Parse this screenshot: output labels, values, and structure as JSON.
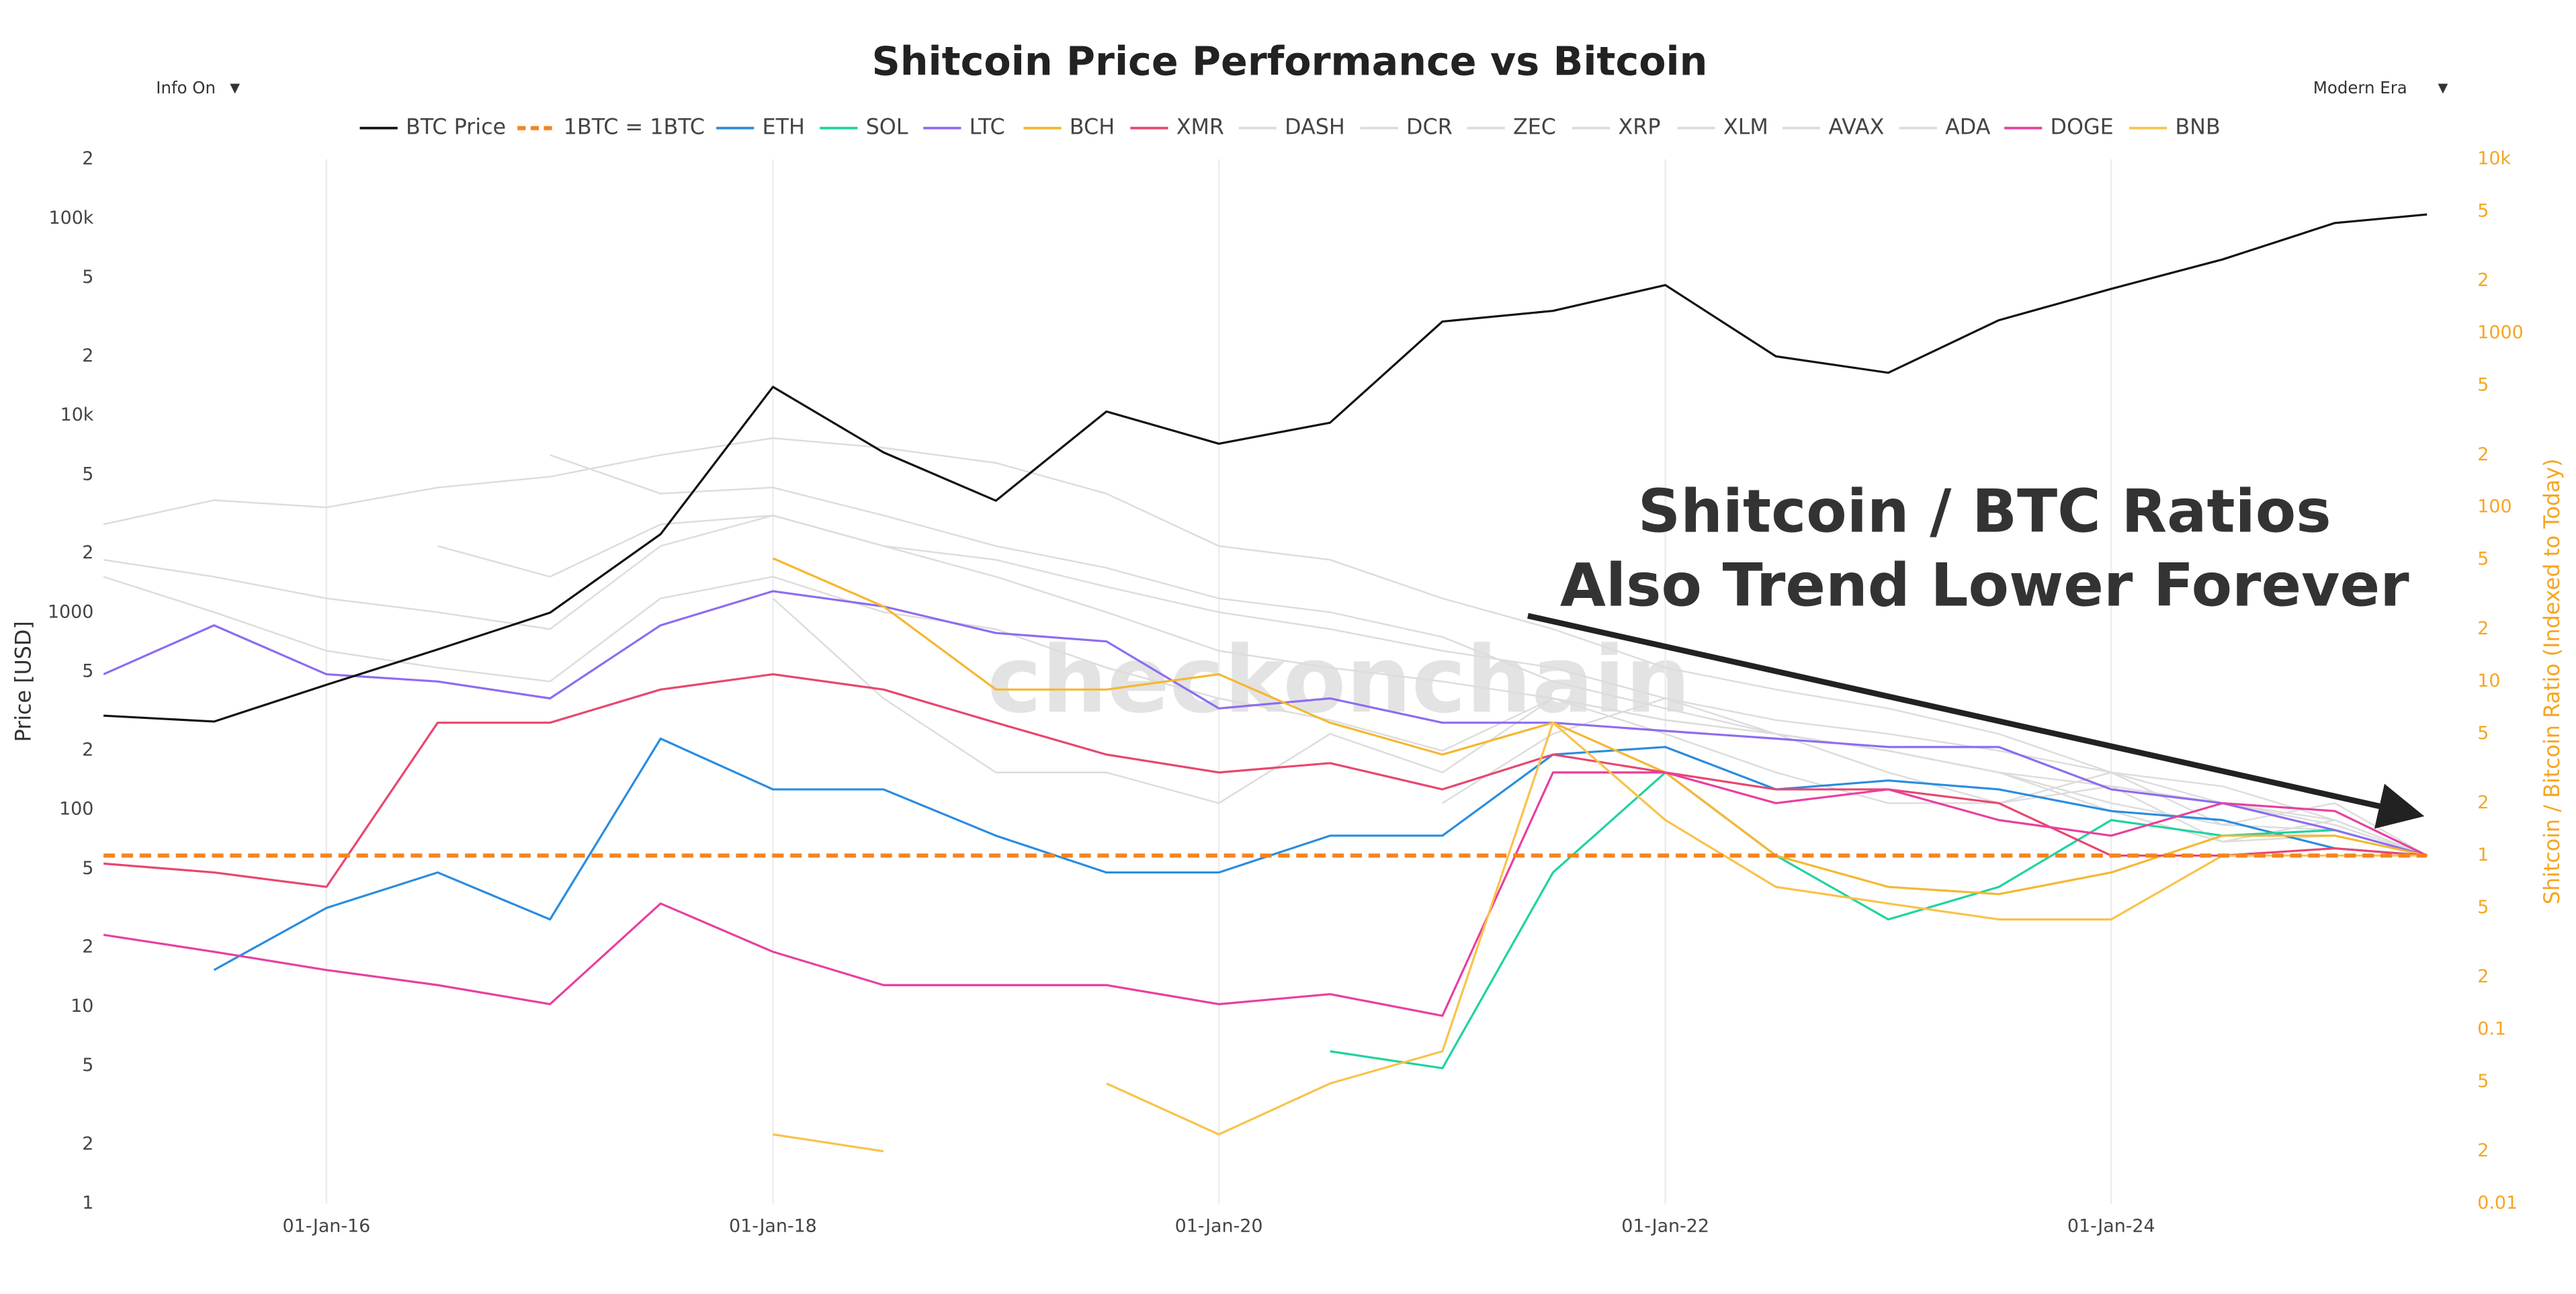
{
  "title": "Shitcoin Price Performance vs Bitcoin",
  "controls": {
    "info": "Info On",
    "era": "Modern Era"
  },
  "chart_data": {
    "type": "line",
    "title": "Shitcoin Price Performance vs Bitcoin",
    "y_label": "Price [USD]",
    "y2_label": "Shitcoin / Bitcoin Ratio (Indexed to Today)",
    "annotations": [
      "Shitcoin / BTC Ratios",
      "Also Trend Lower Forever"
    ],
    "watermark": "checkonchain",
    "log_scale": true,
    "grid": true,
    "legend": "top",
    "xlim": [
      "2015-01-01",
      "2025-08-01"
    ],
    "xticks": [
      {
        "value": "2016-01-01",
        "label": "01-Jan-16"
      },
      {
        "value": "2018-01-01",
        "label": "01-Jan-18"
      },
      {
        "value": "2020-01-01",
        "label": "01-Jan-20"
      },
      {
        "value": "2022-01-01",
        "label": "01-Jan-22"
      },
      {
        "value": "2024-01-01",
        "label": "01-Jan-24"
      }
    ],
    "ylim": [
      1,
      200000
    ],
    "yticks": [
      1,
      2,
      5,
      10,
      {
        "value": 20,
        "label": "2"
      },
      {
        "value": 50,
        "label": "5"
      },
      100,
      {
        "value": 200,
        "label": "2"
      },
      {
        "value": 500,
        "label": "5"
      },
      1000,
      {
        "value": 2000,
        "label": "2"
      },
      {
        "value": 5000,
        "label": "5"
      },
      {
        "value": 10000,
        "label": "10k"
      },
      {
        "value": 20000,
        "label": "2"
      },
      {
        "value": 50000,
        "label": "5"
      },
      {
        "value": 100000,
        "label": "100k"
      },
      {
        "value": 200000,
        "label": "2"
      }
    ],
    "y2lim": [
      0.01,
      10000
    ],
    "y2ticks": [
      0.01,
      {
        "value": 0.02,
        "label": "2"
      },
      {
        "value": 0.05,
        "label": "5"
      },
      0.1,
      {
        "value": 0.2,
        "label": "2"
      },
      {
        "value": 0.5,
        "label": "5"
      },
      1,
      2,
      5,
      10,
      {
        "value": 20,
        "label": "2"
      },
      {
        "value": 50,
        "label": "5"
      },
      100,
      {
        "value": 200,
        "label": "2"
      },
      {
        "value": 500,
        "label": "5"
      },
      1000,
      {
        "value": 2000,
        "label": "2"
      },
      {
        "value": 5000,
        "label": "5"
      },
      {
        "value": 10000,
        "label": "10k"
      }
    ],
    "x": [
      "2015-01-01",
      "2015-07-01",
      "2016-01-01",
      "2016-07-01",
      "2017-01-01",
      "2017-07-01",
      "2018-01-01",
      "2018-07-01",
      "2019-01-01",
      "2019-07-01",
      "2020-01-01",
      "2020-07-01",
      "2021-01-01",
      "2021-07-01",
      "2022-01-01",
      "2022-07-01",
      "2023-01-01",
      "2023-07-01",
      "2024-01-01",
      "2024-07-01",
      "2025-01-01",
      "2025-06-01"
    ],
    "series": [
      {
        "name": "BTC Price",
        "color": "#111111",
        "values": [
          300,
          280,
          430,
          650,
          1000,
          2500,
          14000,
          6500,
          3700,
          10500,
          7200,
          9200,
          30000,
          34000,
          46000,
          20000,
          16500,
          30500,
          44000,
          62000,
          95000,
          105000
        ]
      },
      {
        "name": "1BTC = 1BTC",
        "color": "#f5841f",
        "axis": "y2",
        "dashed": true,
        "values": [
          1,
          1,
          1,
          1,
          1,
          1,
          1,
          1,
          1,
          1,
          1,
          1,
          1,
          1,
          1,
          1,
          1,
          1,
          1,
          1,
          1,
          1
        ]
      },
      {
        "name": "ETH",
        "color": "#2a8ce0",
        "axis": "y2",
        "values": [
          null,
          0.22,
          0.5,
          0.8,
          0.43,
          4.7,
          2.4,
          2.4,
          1.3,
          0.8,
          0.8,
          1.3,
          1.3,
          3.8,
          4.2,
          2.4,
          2.7,
          2.4,
          1.8,
          1.6,
          1.1,
          1
        ]
      },
      {
        "name": "SOL",
        "color": "#1fd3a0",
        "axis": "y2",
        "values": [
          null,
          null,
          null,
          null,
          null,
          null,
          null,
          null,
          null,
          null,
          null,
          0.075,
          0.06,
          0.8,
          3,
          1,
          0.43,
          0.66,
          1.6,
          1.3,
          1.4,
          1
        ]
      },
      {
        "name": "LTC",
        "color": "#8d6cf0",
        "axis": "y2",
        "values": [
          11,
          21,
          11,
          10,
          8,
          21,
          33,
          27,
          19,
          17,
          7,
          8,
          5.8,
          5.8,
          5.2,
          4.7,
          4.2,
          4.2,
          2.4,
          2,
          1.4,
          1
        ]
      },
      {
        "name": "BCH",
        "color": "#f5b731",
        "axis": "y2",
        "values": [
          null,
          null,
          null,
          null,
          null,
          null,
          51,
          27,
          9,
          9,
          11,
          5.8,
          3.8,
          5.8,
          3,
          1,
          0.66,
          0.6,
          0.8,
          1.3,
          1.3,
          1
        ]
      },
      {
        "name": "XMR",
        "color": "#e8466e",
        "axis": "y2",
        "values": [
          0.9,
          0.8,
          0.66,
          5.8,
          5.8,
          9,
          11,
          9,
          5.8,
          3.8,
          3,
          3.4,
          2.4,
          3.8,
          3,
          2.4,
          2.4,
          2,
          1,
          1,
          1.1,
          1
        ]
      },
      {
        "name": "DASH",
        "color": "#dcdcdc",
        "axis": "y2",
        "values": [
          80,
          110,
          100,
          130,
          150,
          200,
          250,
          220,
          180,
          120,
          60,
          50,
          30,
          20,
          12,
          9,
          7,
          5,
          3,
          2.5,
          1.6,
          1
        ]
      },
      {
        "name": "DCR",
        "color": "#dcdcdc",
        "axis": "y2",
        "values": [
          null,
          null,
          null,
          60,
          40,
          80,
          90,
          60,
          50,
          35,
          25,
          20,
          15,
          12,
          8,
          6,
          5,
          4,
          3,
          2,
          1.5,
          1
        ]
      },
      {
        "name": "ZEC",
        "color": "#dcdcdc",
        "axis": "y2",
        "values": [
          null,
          null,
          null,
          null,
          200,
          120,
          130,
          90,
          60,
          45,
          30,
          25,
          18,
          10,
          7,
          5,
          4,
          3,
          1.8,
          1.2,
          1.3,
          1
        ]
      },
      {
        "name": "XRP",
        "color": "#dcdcdc",
        "axis": "y2",
        "values": [
          40,
          25,
          15,
          12,
          10,
          30,
          40,
          25,
          20,
          12,
          8,
          6,
          4,
          8,
          6,
          5,
          4,
          3,
          2,
          1.5,
          2,
          1
        ]
      },
      {
        "name": "XLM",
        "color": "#dcdcdc",
        "axis": "y2",
        "values": [
          50,
          40,
          30,
          25,
          20,
          60,
          90,
          60,
          40,
          25,
          15,
          12,
          10,
          8,
          6,
          5,
          4,
          3,
          2.5,
          2,
          1.6,
          1
        ]
      },
      {
        "name": "AVAX",
        "color": "#dcdcdc",
        "axis": "y2",
        "values": [
          null,
          null,
          null,
          null,
          null,
          null,
          null,
          null,
          null,
          null,
          null,
          null,
          2,
          5,
          8,
          5,
          3,
          2,
          3,
          1.5,
          1.4,
          1
        ]
      },
      {
        "name": "ADA",
        "color": "#dcdcdc",
        "axis": "y2",
        "values": [
          null,
          null,
          null,
          null,
          null,
          null,
          30,
          8,
          3,
          3,
          2,
          5,
          3,
          8,
          5,
          3,
          2,
          2,
          2.5,
          1.2,
          1.6,
          1
        ]
      },
      {
        "name": "DOGE",
        "color": "#e83f9f",
        "axis": "y2",
        "values": [
          0.35,
          0.28,
          0.22,
          0.18,
          0.14,
          0.53,
          0.28,
          0.18,
          0.18,
          0.18,
          0.14,
          0.16,
          0.12,
          3,
          3,
          2,
          2.4,
          1.6,
          1.3,
          2,
          1.8,
          1
        ]
      },
      {
        "name": "BNB",
        "color": "#f9c24a",
        "axis": "y2",
        "values": [
          null,
          null,
          null,
          null,
          null,
          null,
          0.025,
          0.02,
          null,
          0.049,
          0.025,
          0.049,
          0.075,
          5.8,
          1.6,
          0.66,
          0.53,
          0.43,
          0.43,
          1,
          1,
          1
        ]
      }
    ]
  }
}
